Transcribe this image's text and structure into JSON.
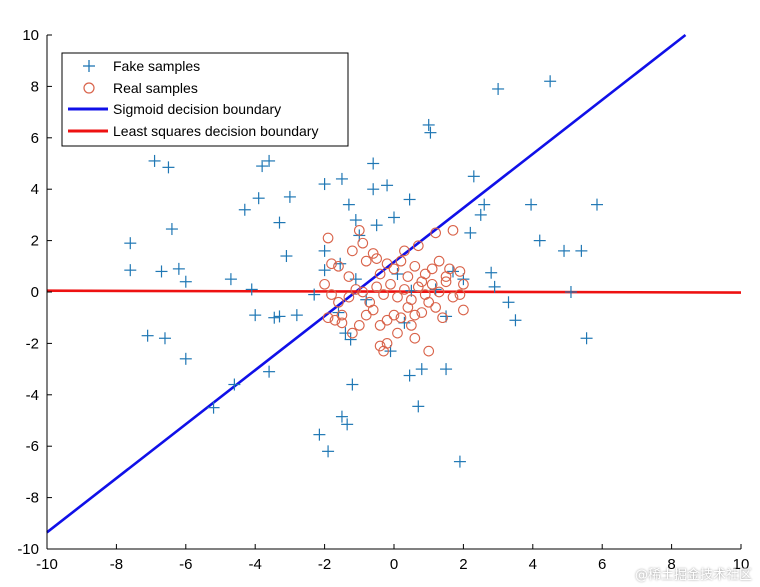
{
  "chart_data": {
    "type": "scatter",
    "xlim": [
      -10,
      10
    ],
    "ylim": [
      -10,
      10
    ],
    "xticks": [
      "-10",
      "-8",
      "-6",
      "-4",
      "-2",
      "0",
      "2",
      "4",
      "6",
      "8",
      "10"
    ],
    "yticks": [
      "-10",
      "-8",
      "-6",
      "-4",
      "-2",
      "0",
      "2",
      "4",
      "6",
      "8",
      "10"
    ],
    "grid": false,
    "legend_position": "top-left",
    "series": [
      {
        "name": "Fake samples",
        "marker": "plus",
        "color": "#1f77b4",
        "points": [
          [
            -7.6,
            1.9
          ],
          [
            -7.6,
            0.85
          ],
          [
            -6.9,
            5.1
          ],
          [
            -6.5,
            4.85
          ],
          [
            -6.4,
            2.45
          ],
          [
            -6.7,
            0.8
          ],
          [
            -6.2,
            0.9
          ],
          [
            -6.0,
            0.4
          ],
          [
            -7.1,
            -1.7
          ],
          [
            -6.6,
            -1.8
          ],
          [
            -6.0,
            -2.6
          ],
          [
            -5.2,
            -4.5
          ],
          [
            -4.6,
            -3.6
          ],
          [
            -4.7,
            0.5
          ],
          [
            -4.3,
            3.2
          ],
          [
            -3.9,
            3.65
          ],
          [
            -3.8,
            4.9
          ],
          [
            -3.6,
            5.1
          ],
          [
            -3.0,
            3.7
          ],
          [
            -3.3,
            2.7
          ],
          [
            -3.1,
            1.4
          ],
          [
            -4.1,
            0.1
          ],
          [
            -4.0,
            -0.9
          ],
          [
            -3.3,
            -0.95
          ],
          [
            -3.45,
            -1.0
          ],
          [
            -2.8,
            -0.9
          ],
          [
            -3.6,
            -3.1
          ],
          [
            -2.3,
            -0.1
          ],
          [
            -2.0,
            0.85
          ],
          [
            -2.0,
            4.2
          ],
          [
            -1.5,
            4.4
          ],
          [
            -1.3,
            3.4
          ],
          [
            -1.1,
            2.8
          ],
          [
            -1.0,
            2.2
          ],
          [
            -2.0,
            1.6
          ],
          [
            -1.55,
            1.1
          ],
          [
            -1.6,
            -0.8
          ],
          [
            -1.4,
            -1.6
          ],
          [
            -1.25,
            -1.85
          ],
          [
            -1.2,
            -3.6
          ],
          [
            -1.5,
            -4.85
          ],
          [
            -1.35,
            -5.15
          ],
          [
            -2.15,
            -5.55
          ],
          [
            -1.9,
            -6.2
          ],
          [
            -0.6,
            5.0
          ],
          [
            -0.6,
            4.0
          ],
          [
            -0.2,
            4.15
          ],
          [
            -0.5,
            2.6
          ],
          [
            0.0,
            2.9
          ],
          [
            0.45,
            3.6
          ],
          [
            1.0,
            6.5
          ],
          [
            1.05,
            6.2
          ],
          [
            0.3,
            -1.2
          ],
          [
            -0.1,
            -2.3
          ],
          [
            0.45,
            -3.25
          ],
          [
            0.8,
            -3.0
          ],
          [
            0.7,
            -4.45
          ],
          [
            1.5,
            -3.0
          ],
          [
            1.5,
            -0.95
          ],
          [
            1.9,
            -6.6
          ],
          [
            2.0,
            0.5
          ],
          [
            2.2,
            2.3
          ],
          [
            2.3,
            4.5
          ],
          [
            2.5,
            3.0
          ],
          [
            2.6,
            3.4
          ],
          [
            2.8,
            0.75
          ],
          [
            2.9,
            0.2
          ],
          [
            3.0,
            7.9
          ],
          [
            3.3,
            -0.4
          ],
          [
            3.5,
            -1.1
          ],
          [
            3.95,
            3.4
          ],
          [
            4.2,
            2.0
          ],
          [
            4.5,
            8.2
          ],
          [
            4.9,
            1.6
          ],
          [
            5.1,
            0.0
          ],
          [
            5.4,
            1.6
          ],
          [
            5.55,
            -1.8
          ],
          [
            5.85,
            3.4
          ],
          [
            -1.1,
            0.5
          ],
          [
            -0.8,
            -0.3
          ],
          [
            0.1,
            0.7
          ],
          [
            0.5,
            0.05
          ],
          [
            1.2,
            0.1
          ],
          [
            1.7,
            0.8
          ]
        ]
      },
      {
        "name": "Real samples",
        "marker": "circle",
        "color": "#d9634a",
        "points": [
          [
            -1.9,
            2.1
          ],
          [
            -1.8,
            1.1
          ],
          [
            -1.6,
            1.0
          ],
          [
            -1.2,
            1.6
          ],
          [
            -1.0,
            2.4
          ],
          [
            -0.8,
            1.2
          ],
          [
            -0.5,
            1.3
          ],
          [
            -0.4,
            0.7
          ],
          [
            -0.2,
            1.1
          ],
          [
            0.0,
            0.9
          ],
          [
            0.2,
            1.2
          ],
          [
            0.4,
            0.6
          ],
          [
            0.6,
            1.0
          ],
          [
            0.7,
            1.8
          ],
          [
            0.9,
            0.7
          ],
          [
            1.1,
            0.9
          ],
          [
            1.3,
            1.2
          ],
          [
            1.5,
            0.6
          ],
          [
            1.7,
            2.4
          ],
          [
            1.9,
            0.8
          ],
          [
            2.0,
            0.3
          ],
          [
            1.2,
            2.3
          ],
          [
            -2.0,
            0.3
          ],
          [
            -1.8,
            -0.1
          ],
          [
            -1.6,
            -0.4
          ],
          [
            -1.5,
            -0.9
          ],
          [
            -1.3,
            -0.2
          ],
          [
            -1.1,
            0.1
          ],
          [
            -0.9,
            0.0
          ],
          [
            -0.7,
            -0.4
          ],
          [
            -0.5,
            0.2
          ],
          [
            -0.3,
            -0.1
          ],
          [
            -0.1,
            0.3
          ],
          [
            0.1,
            -0.2
          ],
          [
            0.3,
            0.1
          ],
          [
            0.5,
            -0.3
          ],
          [
            0.7,
            0.2
          ],
          [
            0.9,
            -0.1
          ],
          [
            1.1,
            0.3
          ],
          [
            1.3,
            0.0
          ],
          [
            1.5,
            0.4
          ],
          [
            1.7,
            -0.2
          ],
          [
            1.9,
            -0.1
          ],
          [
            2.0,
            -0.7
          ],
          [
            -1.9,
            -1.0
          ],
          [
            -1.7,
            -1.1
          ],
          [
            -1.5,
            -1.2
          ],
          [
            -1.2,
            -1.6
          ],
          [
            -1.0,
            -1.3
          ],
          [
            -0.8,
            -0.9
          ],
          [
            -0.6,
            -0.7
          ],
          [
            -0.4,
            -1.3
          ],
          [
            -0.2,
            -1.1
          ],
          [
            0.0,
            -0.9
          ],
          [
            0.2,
            -1.0
          ],
          [
            0.4,
            -0.6
          ],
          [
            0.6,
            -0.9
          ],
          [
            0.8,
            -0.8
          ],
          [
            1.0,
            -0.4
          ],
          [
            1.2,
            -0.6
          ],
          [
            1.4,
            -1.0
          ],
          [
            -0.4,
            -2.1
          ],
          [
            -0.3,
            -2.3
          ],
          [
            -0.2,
            -2.0
          ],
          [
            0.5,
            -1.3
          ],
          [
            0.6,
            -1.8
          ],
          [
            1.0,
            -2.3
          ],
          [
            0.1,
            -1.6
          ],
          [
            -1.3,
            0.6
          ],
          [
            -0.9,
            1.9
          ],
          [
            -0.6,
            1.5
          ],
          [
            0.3,
            1.6
          ],
          [
            0.8,
            0.4
          ],
          [
            1.6,
            0.9
          ]
        ]
      },
      {
        "name": "Sigmoid decision boundary",
        "marker": "line",
        "color": "#1010e8",
        "points": [
          [
            -10,
            -9.35
          ],
          [
            8.4,
            10
          ]
        ]
      },
      {
        "name": "Least squares decision boundary",
        "marker": "line",
        "color": "#ee1111",
        "points": [
          [
            -10,
            0.05
          ],
          [
            10,
            -0.02
          ]
        ]
      }
    ]
  },
  "watermark": "@稀土掘金技术社区"
}
